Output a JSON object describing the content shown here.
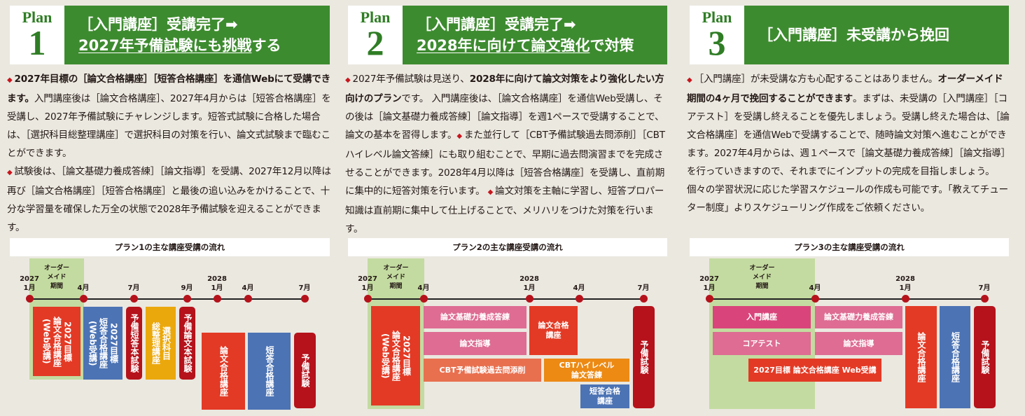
{
  "colors": {
    "green_header": "#3d8b2f",
    "plan_text": "#2f7d25",
    "marker": "#c8161d",
    "red": "#e33a25",
    "blue": "#4c73b4",
    "dark_red": "#b5121b",
    "yellow": "#eba80c",
    "pink": "#de6c93",
    "magenta": "#d9457a",
    "salmon": "#e8704f",
    "orange": "#ec8a14",
    "order_period": "#c3dba0"
  },
  "plans": [
    {
      "plan_label": "Plan",
      "number": "1",
      "title_line1": "［入門講座］受講完了➡",
      "title_line2_underlined": "2027年予備試験にも挑戦",
      "title_line2_rest": "する",
      "body": [
        {
          "marker": "◆",
          "text": "2027年目標の［論文合格講座］［短答合格講座］を通信Webにて受講できます。",
          "bold": true
        },
        {
          "text": "入門講座後は［論文合格講座］、2027年4月からは［短答合格講座］を受講し、2027年予備試験にチャレンジします。短答式試験に合格した場合は、［選択科目総整理講座］で選択科目の対策を行い、論文式試験まで臨むことができます。",
          "bold": false,
          "br_after": true
        },
        {
          "marker": "◆",
          "text": "試験後は、［論文基礎力養成答練］［論文指導］を受講、2027年12月以降は再び［論文合格講座］［短答合格講座］と最後の追い込みをかけることで、十分な学習量を確保した万全の状態で2028年予備試験を迎えることができます。",
          "bold": false
        }
      ],
      "timeline_title": "プラン1の主な講座受講の流れ",
      "order_period": "オーダー\nメイド\n期間",
      "ticks": [
        {
          "year": "2027",
          "month": "1月"
        },
        {
          "year": "",
          "month": "4月"
        },
        {
          "year": "",
          "month": "7月"
        },
        {
          "year": "",
          "month": "9月"
        },
        {
          "year": "2028",
          "month": "1月"
        },
        {
          "year": "",
          "month": "4月"
        },
        {
          "year": "",
          "month": "7月"
        }
      ],
      "courses": [
        {
          "label": "2027目標\n論文合格講座\n(Web受講)",
          "color": "red"
        },
        {
          "label": "2027目標\n短答合格講座\n(Web受講)",
          "color": "blue"
        },
        {
          "label": "予備短答本試験",
          "color": "dark_red"
        },
        {
          "label": "選択科目\n総整理講座",
          "color": "yellow"
        },
        {
          "label": "予備論文本試験",
          "color": "dark_red"
        },
        {
          "label": "論文合格講座",
          "color": "red"
        },
        {
          "label": "短答合格講座",
          "color": "blue"
        },
        {
          "label": "予備試験",
          "color": "dark_red"
        }
      ]
    },
    {
      "plan_label": "Plan",
      "number": "2",
      "title_line1": "［入門講座］受講完了➡",
      "title_line2_underlined": "2028年に向けて論文強化",
      "title_line2_rest": "で対策",
      "body": [
        {
          "marker": "◆",
          "text": "2027年予備試験は見送り、",
          "bold": false
        },
        {
          "text": "2028年に向けて論文対策をより強化したい方向けのプラン",
          "bold": true
        },
        {
          "text": "です。 入門講座後は、［論文合格講座］を通信Web受講し、その後は［論文基礎力養成答練］［論文指導］を週1ペースで受講することで、論文の基本を習得します。",
          "bold": false
        },
        {
          "marker": "◆",
          "text": "また並行して［CBT予備試験過去問添削］［CBTハイレベル論文答練］にも取り組むことで、早期に過去問演習までを完成させることができます。2028年4月以降は［短答合格講座］を受講し、直前期に集中的に短答対策を行います。 ",
          "bold": false
        },
        {
          "marker": "◆",
          "text": "論文対策を主軸に学習し、短答プロパー知識は直前期に集中して仕上げることで、メリハリをつけた対策を行います。",
          "bold": false
        }
      ],
      "timeline_title": "プラン2の主な講座受講の流れ",
      "order_period": "オーダー\nメイド\n期間",
      "ticks": [
        {
          "year": "2027",
          "month": "1月"
        },
        {
          "year": "",
          "month": "4月"
        },
        {
          "year": "2028",
          "month": "1月"
        },
        {
          "year": "",
          "month": "4月"
        },
        {
          "year": "",
          "month": "7月"
        }
      ],
      "courses": [
        {
          "label": "2027目標\n論文合格講座\n(Web受講)",
          "color": "red"
        },
        {
          "label": "論文基礎力養成答練",
          "color": "pink"
        },
        {
          "label": "論文指導",
          "color": "pink"
        },
        {
          "label": "CBT予備試験過去問添削",
          "color": "salmon"
        },
        {
          "label": "論文合格\n講座",
          "color": "red"
        },
        {
          "label": "CBTハイレベル\n論文答練",
          "color": "orange"
        },
        {
          "label": "短答合格\n講座",
          "color": "blue"
        },
        {
          "label": "予備試験",
          "color": "dark_red"
        }
      ]
    },
    {
      "plan_label": "Plan",
      "number": "3",
      "title_line1": "［入門講座］未受講から挽回",
      "title_line2_underlined": "",
      "title_line2_rest": "",
      "body": [
        {
          "marker": "◆",
          "text": "［入門講座］が未受講な方も心配することはありません。",
          "bold": false
        },
        {
          "text": "オーダーメイド期間の4ヶ月で挽回することができます",
          "bold": true
        },
        {
          "text": "。まずは、未受講の［入門講座］［コアテスト］を受講し終えることを優先しましょう。受講し終えた場合は、［論文合格講座］を通信Webで受講することで、随時論文対策へ進むことができます。2027年4月からは、週１ペースで［論文基礎力養成答練］［論文指導］を行っていきますので、それまでにインプットの完成を目指しましょう。 個々の学習状況に応じた学習スケジュールの作成も可能です。「教えてチューター制度」よりスケジューリング作成をご依頼ください。",
          "bold": false
        }
      ],
      "timeline_title": "プラン3の主な講座受講の流れ",
      "order_period": "オーダー\nメイド\n期間",
      "ticks": [
        {
          "year": "2027",
          "month": "1月"
        },
        {
          "year": "",
          "month": "4月"
        },
        {
          "year": "2028",
          "month": "1月"
        },
        {
          "year": "",
          "month": "7月"
        }
      ],
      "courses": [
        {
          "label": "入門講座",
          "color": "magenta"
        },
        {
          "label": "コアテスト",
          "color": "pink"
        },
        {
          "label": "論文基礎力養成答練",
          "color": "pink"
        },
        {
          "label": "論文指導",
          "color": "pink"
        },
        {
          "label": "2027目標 論文合格講座 Web受講",
          "color": "red"
        },
        {
          "label": "論文合格講座",
          "color": "red"
        },
        {
          "label": "短答合格講座",
          "color": "blue"
        },
        {
          "label": "予備試験",
          "color": "dark_red"
        }
      ]
    }
  ]
}
